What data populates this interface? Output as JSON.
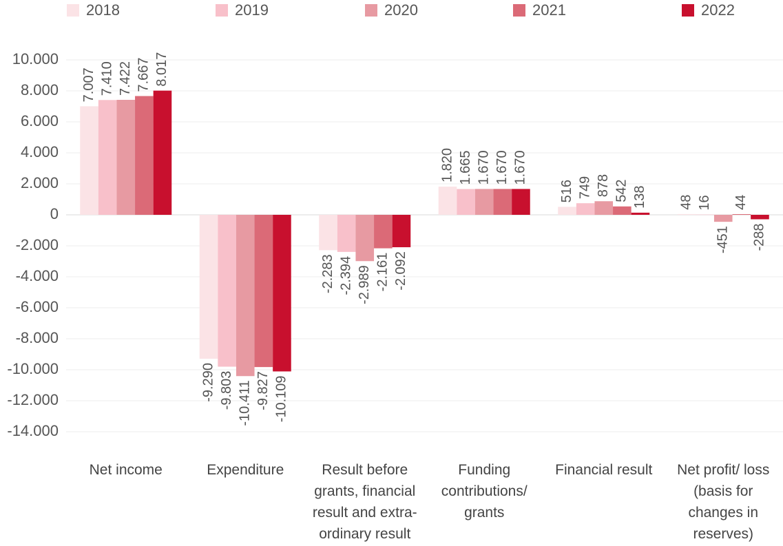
{
  "chart_data": {
    "type": "bar",
    "categories": [
      "Net income",
      "Expenditure",
      "Result before grants, financial result and extra-ordinary result",
      "Funding contributions/ grants",
      "Financial result",
      "Net profit/ loss (basis for changes in reserves)"
    ],
    "series": [
      {
        "name": "2018",
        "color": "#fbe3e6",
        "values": [
          7007,
          -9290,
          -2283,
          1820,
          516,
          48
        ],
        "value_labels": [
          "7.007",
          "-9.290",
          "-2.283",
          "1.820",
          "516",
          "48"
        ]
      },
      {
        "name": "2019",
        "color": "#f8c0ca",
        "values": [
          7410,
          -9803,
          -2394,
          1665,
          749,
          16
        ],
        "value_labels": [
          "7.410",
          "-9.803",
          "-2.394",
          "1.665",
          "749",
          "16"
        ]
      },
      {
        "name": "2020",
        "color": "#e79aa2",
        "values": [
          7422,
          -10411,
          -2989,
          1670,
          878,
          -451
        ],
        "value_labels": [
          "7.422",
          "-10.411",
          "-2.989",
          "1.670",
          "878",
          "-451"
        ]
      },
      {
        "name": "2021",
        "color": "#db6a77",
        "values": [
          7667,
          -9827,
          -2161,
          1670,
          542,
          44
        ],
        "value_labels": [
          "7.667",
          "-9.827",
          "-2.161",
          "1.670",
          "542",
          "44"
        ]
      },
      {
        "name": "2022",
        "color": "#c8102e",
        "values": [
          8017,
          -10109,
          -2092,
          1670,
          138,
          -288
        ],
        "value_labels": [
          "8.017",
          "-10.109",
          "-2.092",
          "1.670",
          "138",
          "-288"
        ]
      }
    ],
    "ylim": [
      -14000,
      10000
    ],
    "yticks": [
      {
        "value": -14000,
        "label": "-14.000"
      },
      {
        "value": -12000,
        "label": "-12.000"
      },
      {
        "value": -10000,
        "label": "-10.000"
      },
      {
        "value": -8000,
        "label": "-8.000"
      },
      {
        "value": -6000,
        "label": "-6.000"
      },
      {
        "value": -4000,
        "label": "-4.000"
      },
      {
        "value": -2000,
        "label": "-2.000"
      },
      0,
      {
        "value": 2000,
        "label": "2.000"
      },
      {
        "value": 4000,
        "label": "4.000"
      },
      {
        "value": 6000,
        "label": "6.000"
      },
      {
        "value": 8000,
        "label": "8.000"
      },
      {
        "value": 10000,
        "label": "10.000"
      }
    ],
    "grid": true,
    "legend": "top"
  }
}
